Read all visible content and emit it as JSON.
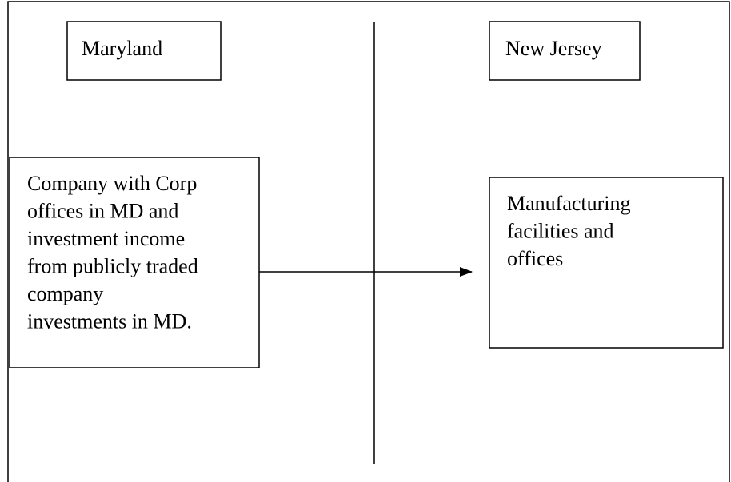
{
  "nodes": [
    {
      "label": "Maryland"
    },
    {
      "label": "New Jersey"
    },
    {
      "lines": [
        "Company with Corp",
        "offices in MD and",
        "investment income",
        "from publicly traded",
        "company",
        "investments in MD."
      ]
    },
    {
      "lines": [
        "Manufacturing",
        "facilities and",
        "offices"
      ]
    }
  ]
}
